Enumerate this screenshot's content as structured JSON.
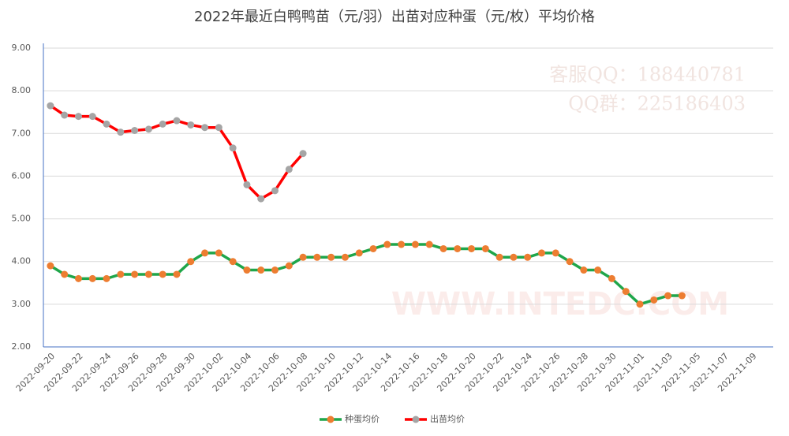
{
  "chart_data": {
    "type": "line",
    "title": "2022年最近白鸭鸭苗（元/羽）出苗对应种蛋（元/枚）平均价格",
    "annotations": [
      "客服QQ：188440781",
      "QQ群：225186403",
      "WWW.INTEDC.COM"
    ],
    "categories": [
      "2022-09-20",
      null,
      "2022-09-22",
      null,
      "2022-09-24",
      null,
      "2022-09-26",
      null,
      "2022-09-28",
      null,
      "2022-09-30",
      null,
      "2022-10-02",
      null,
      "2022-10-04",
      null,
      "2022-10-06",
      null,
      "2022-10-08",
      null,
      "2022-10-10",
      null,
      "2022-10-12",
      null,
      "2022-10-14",
      null,
      "2022-10-16",
      null,
      "2022-10-18",
      null,
      "2022-10-20",
      null,
      "2022-10-22",
      null,
      "2022-10-24",
      null,
      "2022-10-26",
      null,
      "2022-10-28",
      null,
      "2022-10-30",
      null,
      "2022-11-01",
      null,
      "2022-11-03",
      null,
      "2022-11-05",
      null,
      "2022-11-07",
      null,
      "2022-11-09",
      null
    ],
    "series": [
      {
        "name": "种蛋均价",
        "color": "#1fa64a",
        "marker_color": "#ed7d31",
        "values": [
          3.9,
          3.7,
          3.6,
          3.6,
          3.6,
          3.7,
          3.7,
          3.7,
          3.7,
          3.7,
          4.0,
          4.2,
          4.2,
          4.0,
          3.8,
          3.8,
          3.8,
          3.9,
          4.1,
          4.1,
          4.1,
          4.1,
          4.2,
          4.3,
          4.4,
          4.4,
          4.4,
          4.4,
          4.3,
          4.3,
          4.3,
          4.3,
          4.1,
          4.1,
          4.1,
          4.2,
          4.2,
          4.0,
          3.8,
          3.8,
          3.6,
          3.3,
          3.0,
          3.1,
          3.2,
          3.2,
          null,
          null,
          null,
          null,
          null,
          null
        ]
      },
      {
        "name": "出苗均价",
        "color": "#ff0000",
        "marker_color": "#a5a5a5",
        "values": [
          7.65,
          7.43,
          7.4,
          7.4,
          7.22,
          7.03,
          7.07,
          7.1,
          7.22,
          7.3,
          7.2,
          7.14,
          7.14,
          6.66,
          5.8,
          5.47,
          5.66,
          6.16,
          6.53,
          null,
          null,
          null,
          null,
          null,
          null,
          null,
          null,
          null,
          null,
          null,
          null,
          null,
          null,
          null,
          null,
          null,
          null,
          null,
          null,
          null,
          null,
          null,
          null,
          null,
          null,
          null,
          null,
          null,
          null,
          null,
          null,
          null
        ]
      }
    ],
    "ylim": [
      2,
      9
    ],
    "yticks": [
      {
        "value": 2,
        "label": "2.00"
      },
      {
        "value": 3,
        "label": "3.00"
      },
      {
        "value": 4,
        "label": "4.00"
      },
      {
        "value": 5,
        "label": "5.00"
      },
      {
        "value": 6,
        "label": "6.00"
      },
      {
        "value": 7,
        "label": "7.00"
      },
      {
        "value": 8,
        "label": "8.00"
      },
      {
        "value": 9,
        "label": "9.00"
      }
    ],
    "grid": true,
    "legend": "bottom"
  }
}
